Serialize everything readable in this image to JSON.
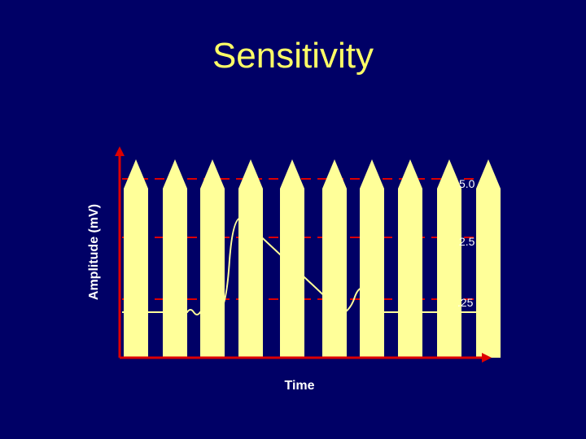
{
  "slide": {
    "title": "Sensitivity",
    "y_axis_label": "Amplitude (mV)",
    "x_axis_label": "Time",
    "levels": [
      "5.0",
      "2.5",
      ".25"
    ]
  },
  "colors": {
    "background": "#000066",
    "title": "#ffff66",
    "spike_fill": "#ffff99",
    "signal_line": "#ffff99",
    "threshold_line": "#dd0000",
    "axis": "#dd0000",
    "text": "#ffffff"
  },
  "spike_count": 10
}
